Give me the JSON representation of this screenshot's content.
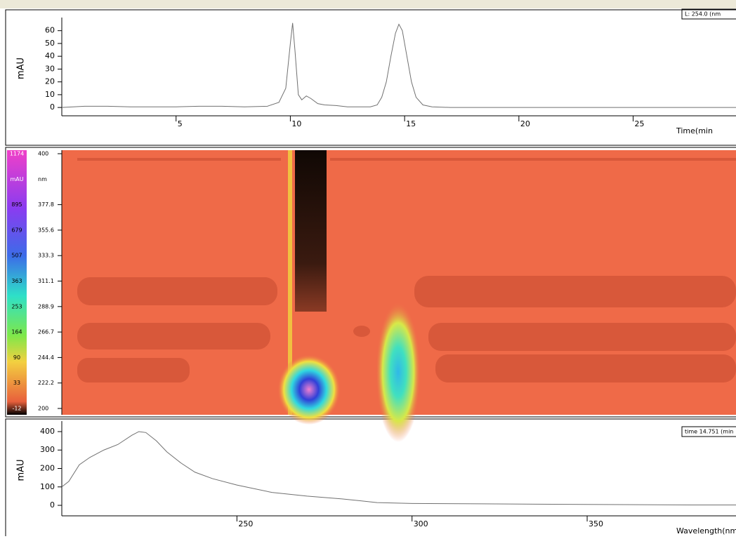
{
  "chart_data": [
    {
      "type": "line",
      "y_label": "mAU",
      "x_label": "Time(min",
      "annotation": "L: 254.0 (nm",
      "color": "#707070",
      "x": [
        0,
        0.5,
        1,
        2,
        3,
        4,
        5,
        6,
        7,
        8,
        9,
        9.5,
        9.8,
        10.0,
        10.1,
        10.2,
        10.35,
        10.5,
        10.7,
        10.9,
        11.2,
        11.5,
        12,
        12.5,
        13,
        13.5,
        13.8,
        14.0,
        14.2,
        14.4,
        14.6,
        14.75,
        14.9,
        15.1,
        15.3,
        15.5,
        15.8,
        16.2,
        17,
        18,
        20,
        22,
        25,
        28,
        29.5
      ],
      "values": [
        0,
        0.5,
        1,
        1,
        0.5,
        0.5,
        0.5,
        1,
        1,
        0.5,
        1,
        4,
        15,
        50,
        66,
        45,
        10,
        6,
        9,
        7,
        3,
        2,
        1.5,
        0.5,
        0.5,
        0.5,
        2,
        8,
        20,
        40,
        58,
        65,
        60,
        40,
        20,
        8,
        2,
        0.5,
        0,
        0,
        0,
        0,
        0,
        0,
        0
      ],
      "xlim": [
        0,
        29.5
      ],
      "ylim": [
        -6.5,
        67.5
      ],
      "xticks": [
        5,
        10,
        15,
        20,
        25
      ],
      "yticks": [
        0,
        10,
        20,
        30,
        40,
        50,
        60
      ]
    },
    {
      "type": "line",
      "y_label": "mAU",
      "x_label": "Wavelength(nm",
      "annotation": "time 14.751 (min",
      "color": "#707070",
      "x": [
        200,
        202,
        205,
        208,
        212,
        216,
        220,
        222,
        224,
        227,
        230,
        234,
        238,
        243,
        250,
        260,
        270,
        280,
        290,
        300,
        320,
        350,
        370,
        380,
        392.5
      ],
      "values": [
        100,
        130,
        220,
        260,
        300,
        330,
        380,
        400,
        395,
        350,
        290,
        230,
        180,
        145,
        110,
        70,
        50,
        35,
        15,
        10,
        8,
        5,
        3,
        2,
        2
      ],
      "xlim": [
        200,
        392.5
      ],
      "ylim": [
        -57,
        438
      ],
      "xticks": [
        250,
        300,
        350
      ],
      "yticks": [
        0,
        100,
        200,
        300,
        400
      ]
    }
  ],
  "heatmap": {
    "color_labels": [
      "1174",
      "mAU",
      "895",
      "679",
      "507",
      "363",
      "253",
      "164",
      "90",
      "33",
      "-12"
    ],
    "wavelength_labels": [
      "400",
      "nm",
      "377.8",
      "355.6",
      "333.3",
      "311.1",
      "288.9",
      "266.7",
      "244.4",
      "222.2",
      "200"
    ]
  }
}
